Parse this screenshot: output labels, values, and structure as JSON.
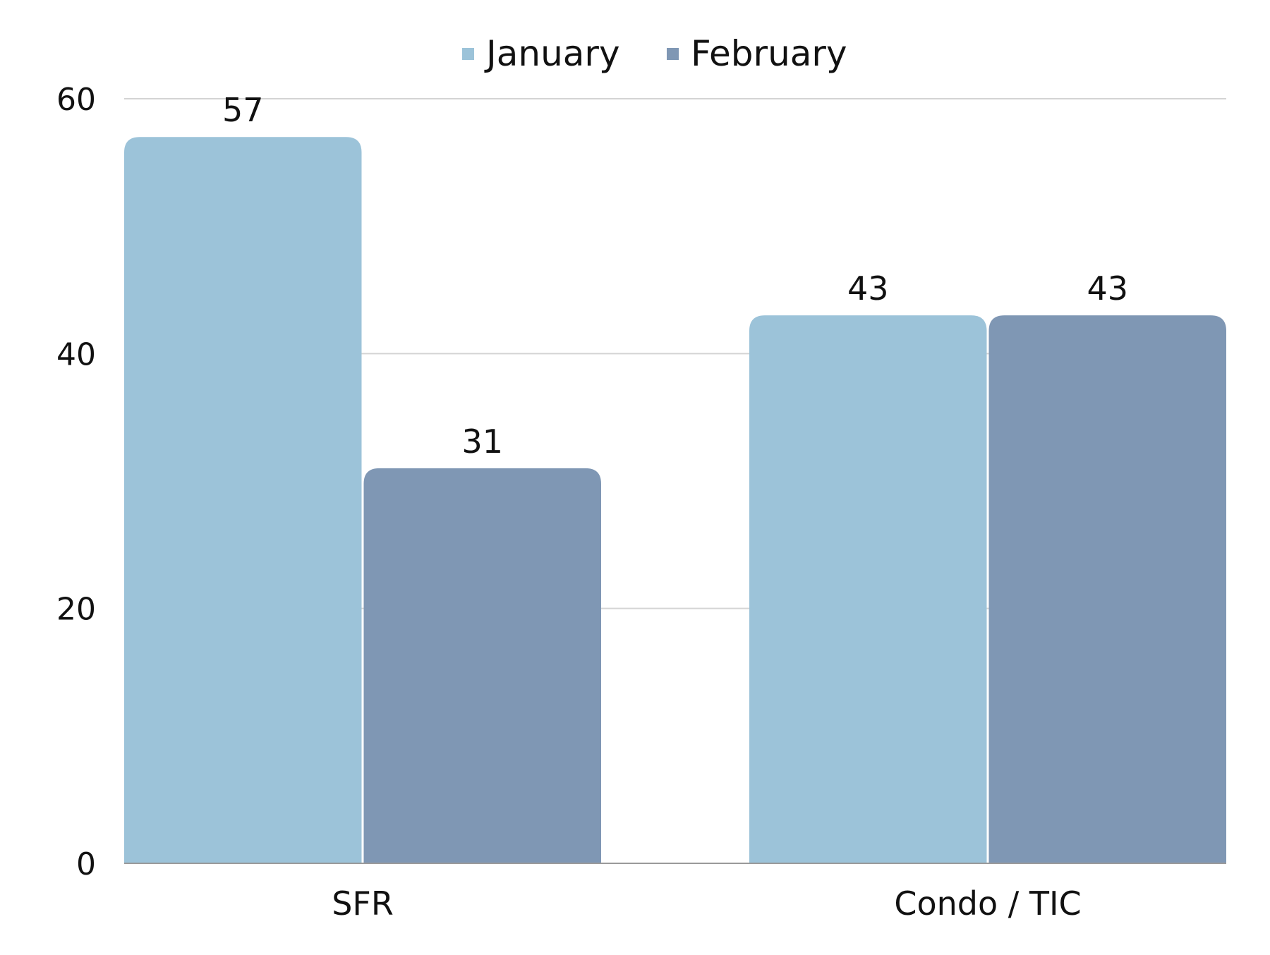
{
  "chart_data": {
    "type": "bar",
    "categories": [
      "SFR",
      "Condo / TIC"
    ],
    "series": [
      {
        "name": "January",
        "values": [
          57,
          43
        ],
        "color": "#9CC3D9"
      },
      {
        "name": "February",
        "values": [
          31,
          43
        ],
        "color": "#7F97B4"
      }
    ],
    "title": "",
    "xlabel": "",
    "ylabel": "",
    "ylim": [
      0,
      60
    ],
    "yticks": [
      "0",
      "20",
      "40",
      "60"
    ],
    "data_labels": true,
    "grid": true,
    "legend_position": "top-center"
  }
}
